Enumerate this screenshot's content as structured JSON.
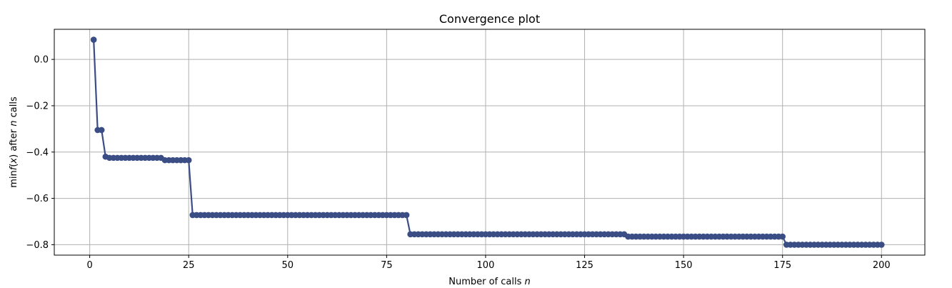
{
  "chart_data": {
    "type": "line",
    "title": "Convergence plot",
    "xlabel": "Number of calls",
    "xlabel_var": "n",
    "ylabel_prefix": "min",
    "ylabel_func": "f",
    "ylabel_arg": "x",
    "ylabel_mid": " after ",
    "ylabel_var": "n",
    "ylabel_suffix": " calls",
    "xlim": [
      -8.95,
      210.95
    ],
    "ylim": [
      -0.845,
      0.13
    ],
    "xticks": [
      0,
      25,
      50,
      75,
      100,
      125,
      150,
      175,
      200
    ],
    "xtick_labels": [
      "0",
      "25",
      "50",
      "75",
      "100",
      "125",
      "150",
      "175",
      "200"
    ],
    "yticks": [
      0.0,
      -0.2,
      -0.4,
      -0.6,
      -0.8
    ],
    "ytick_labels": [
      "0.0",
      "−0.2",
      "−0.4",
      "−0.6",
      "−0.8"
    ],
    "grid": true,
    "line_color": "#3a4d85",
    "steps": [
      {
        "from": 1,
        "to": 1,
        "value": 0.085
      },
      {
        "from": 2,
        "to": 3,
        "value": -0.305
      },
      {
        "from": 4,
        "to": 4,
        "value": -0.42
      },
      {
        "from": 5,
        "to": 18,
        "value": -0.425
      },
      {
        "from": 19,
        "to": 25,
        "value": -0.435
      },
      {
        "from": 26,
        "to": 80,
        "value": -0.672
      },
      {
        "from": 81,
        "to": 135,
        "value": -0.755
      },
      {
        "from": 136,
        "to": 175,
        "value": -0.765
      },
      {
        "from": 176,
        "to": 200,
        "value": -0.8
      }
    ]
  }
}
